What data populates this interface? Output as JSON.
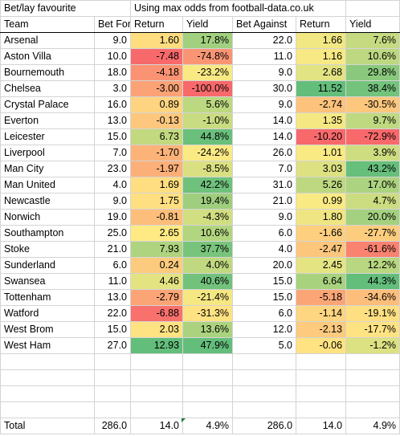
{
  "title_cells": {
    "left": "Bet/lay favourite",
    "right": "Using max odds from football-data.co.uk"
  },
  "headers": [
    "Team",
    "Bet For",
    "Return",
    "Yield",
    "Bet Against",
    "Return",
    "Yield"
  ],
  "rows": [
    {
      "team": "Arsenal",
      "bet_for": "9.0",
      "return_for": "1.60",
      "yield_for": "17.8%",
      "bet_against": "22.0",
      "return_against": "1.66",
      "yield_against": "7.6%"
    },
    {
      "team": "Aston Villa",
      "bet_for": "10.0",
      "return_for": "-7.48",
      "yield_for": "-74.8%",
      "bet_against": "11.0",
      "return_against": "1.16",
      "yield_against": "10.6%"
    },
    {
      "team": "Bournemouth",
      "bet_for": "18.0",
      "return_for": "-4.18",
      "yield_for": "-23.2%",
      "bet_against": "9.0",
      "return_against": "2.68",
      "yield_against": "29.8%"
    },
    {
      "team": "Chelsea",
      "bet_for": "3.0",
      "return_for": "-3.00",
      "yield_for": "-100.0%",
      "bet_against": "30.0",
      "return_against": "11.52",
      "yield_against": "38.4%"
    },
    {
      "team": "Crystal Palace",
      "bet_for": "16.0",
      "return_for": "0.89",
      "yield_for": "5.6%",
      "bet_against": "9.0",
      "return_against": "-2.74",
      "yield_against": "-30.5%"
    },
    {
      "team": "Everton",
      "bet_for": "13.0",
      "return_for": "-0.13",
      "yield_for": "-1.0%",
      "bet_against": "14.0",
      "return_against": "1.35",
      "yield_against": "9.7%"
    },
    {
      "team": "Leicester",
      "bet_for": "15.0",
      "return_for": "6.73",
      "yield_for": "44.8%",
      "bet_against": "14.0",
      "return_against": "-10.20",
      "yield_against": "-72.9%"
    },
    {
      "team": "Liverpool",
      "bet_for": "7.0",
      "return_for": "-1.70",
      "yield_for": "-24.2%",
      "bet_against": "26.0",
      "return_against": "1.01",
      "yield_against": "3.9%"
    },
    {
      "team": "Man City",
      "bet_for": "23.0",
      "return_for": "-1.97",
      "yield_for": "-8.5%",
      "bet_against": "7.0",
      "return_against": "3.03",
      "yield_against": "43.2%"
    },
    {
      "team": "Man United",
      "bet_for": "4.0",
      "return_for": "1.69",
      "yield_for": "42.2%",
      "bet_against": "31.0",
      "return_against": "5.26",
      "yield_against": "17.0%"
    },
    {
      "team": "Newcastle",
      "bet_for": "9.0",
      "return_for": "1.75",
      "yield_for": "19.4%",
      "bet_against": "21.0",
      "return_against": "0.99",
      "yield_against": "4.7%"
    },
    {
      "team": "Norwich",
      "bet_for": "19.0",
      "return_for": "-0.81",
      "yield_for": "-4.3%",
      "bet_against": "9.0",
      "return_against": "1.80",
      "yield_against": "20.0%"
    },
    {
      "team": "Southampton",
      "bet_for": "25.0",
      "return_for": "2.65",
      "yield_for": "10.6%",
      "bet_against": "6.0",
      "return_against": "-1.66",
      "yield_against": "-27.7%"
    },
    {
      "team": "Stoke",
      "bet_for": "21.0",
      "return_for": "7.93",
      "yield_for": "37.7%",
      "bet_against": "4.0",
      "return_against": "-2.47",
      "yield_against": "-61.6%"
    },
    {
      "team": "Sunderland",
      "bet_for": "6.0",
      "return_for": "0.24",
      "yield_for": "4.0%",
      "bet_against": "20.0",
      "return_against": "2.45",
      "yield_against": "12.2%"
    },
    {
      "team": "Swansea",
      "bet_for": "11.0",
      "return_for": "4.46",
      "yield_for": "40.6%",
      "bet_against": "15.0",
      "return_against": "6.64",
      "yield_against": "44.3%"
    },
    {
      "team": "Tottenham",
      "bet_for": "13.0",
      "return_for": "-2.79",
      "yield_for": "-21.4%",
      "bet_against": "15.0",
      "return_against": "-5.18",
      "yield_against": "-34.6%"
    },
    {
      "team": "Watford",
      "bet_for": "22.0",
      "return_for": "-6.88",
      "yield_for": "-31.3%",
      "bet_against": "6.0",
      "return_against": "-1.14",
      "yield_against": "-19.1%"
    },
    {
      "team": "West Brom",
      "bet_for": "15.0",
      "return_for": "2.03",
      "yield_for": "13.6%",
      "bet_against": "12.0",
      "return_against": "-2.13",
      "yield_against": "-17.7%"
    },
    {
      "team": "West Ham",
      "bet_for": "27.0",
      "return_for": "12.93",
      "yield_for": "47.9%",
      "bet_against": "5.0",
      "return_against": "-0.06",
      "yield_against": "-1.2%"
    }
  ],
  "blank_rows": 4,
  "total": {
    "label": "Total",
    "bet_for": "286.0",
    "return_for": "14.0",
    "yield_for": "4.9%",
    "bet_against": "286.0",
    "return_against": "14.0",
    "yield_against": "4.9%"
  },
  "colors": {
    "scale_red": "#f8696b",
    "scale_yellow": "#ffeb84",
    "scale_green": "#63be7b",
    "gridline": "#d4d4d4"
  }
}
